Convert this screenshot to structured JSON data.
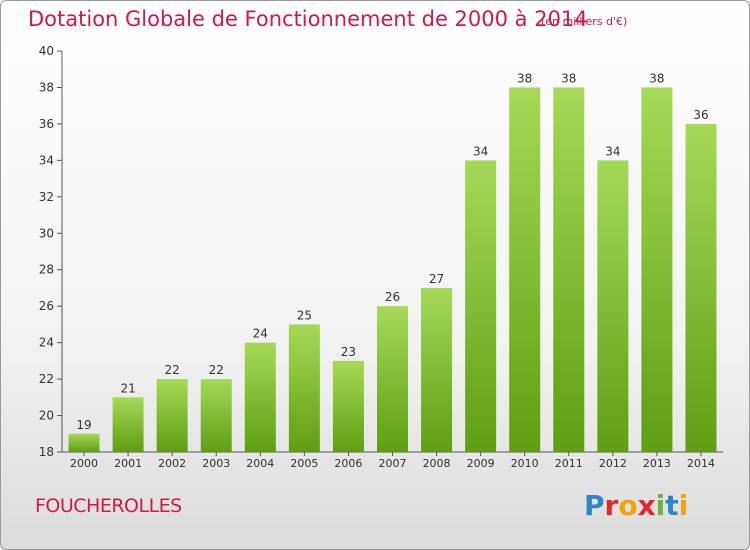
{
  "header": {
    "title": "Dotation Globale de Fonctionnement de 2000 à 2014",
    "subtitle": "(en milliers d'€)"
  },
  "footer": {
    "place_name": "FOUCHEROLLES",
    "logo_text": "Proxiti"
  },
  "colors": {
    "title": "#d0194b",
    "bar_light": "#a6d957",
    "bar_dark": "#5f9e12",
    "axis": "#555555"
  },
  "chart_data": {
    "type": "bar",
    "title": "Dotation Globale de Fonctionnement de 2000 à 2014",
    "subtitle": "(en milliers d'€)",
    "xlabel": "",
    "ylabel": "",
    "categories": [
      "2000",
      "2001",
      "2002",
      "2003",
      "2004",
      "2005",
      "2006",
      "2007",
      "2008",
      "2009",
      "2010",
      "2011",
      "2012",
      "2013",
      "2014"
    ],
    "values": [
      19,
      21,
      22,
      22,
      24,
      25,
      23,
      26,
      27,
      34,
      38,
      38,
      34,
      38,
      36
    ],
    "ylim": [
      18,
      40
    ],
    "yticks": [
      18,
      20,
      22,
      24,
      26,
      28,
      30,
      32,
      34,
      36,
      38,
      40
    ],
    "grid": false,
    "data_labels": true
  }
}
